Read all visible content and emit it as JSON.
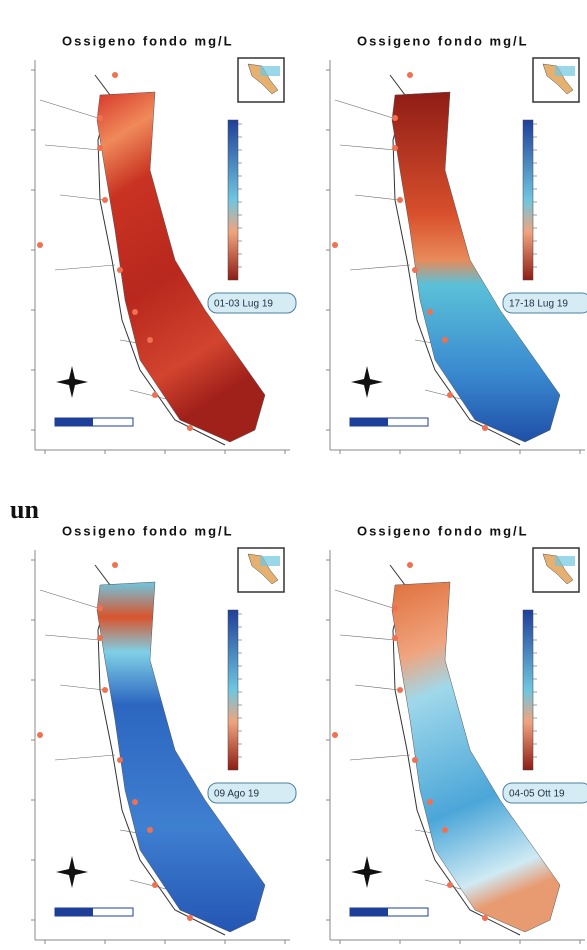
{
  "figure": {
    "panel_label": "un",
    "panels": [
      {
        "title": "Ossigeno fondo mg/L",
        "date": "01-03 Lug 19"
      },
      {
        "title": "Ossigeno fondo mg/L",
        "date": "17-18 Lug 19"
      },
      {
        "title": "Ossigeno fondo mg/L",
        "date": "09 Ago 19"
      },
      {
        "title": "Ossigeno fondo mg/L",
        "date": "04-05 Ott 19"
      }
    ]
  }
}
